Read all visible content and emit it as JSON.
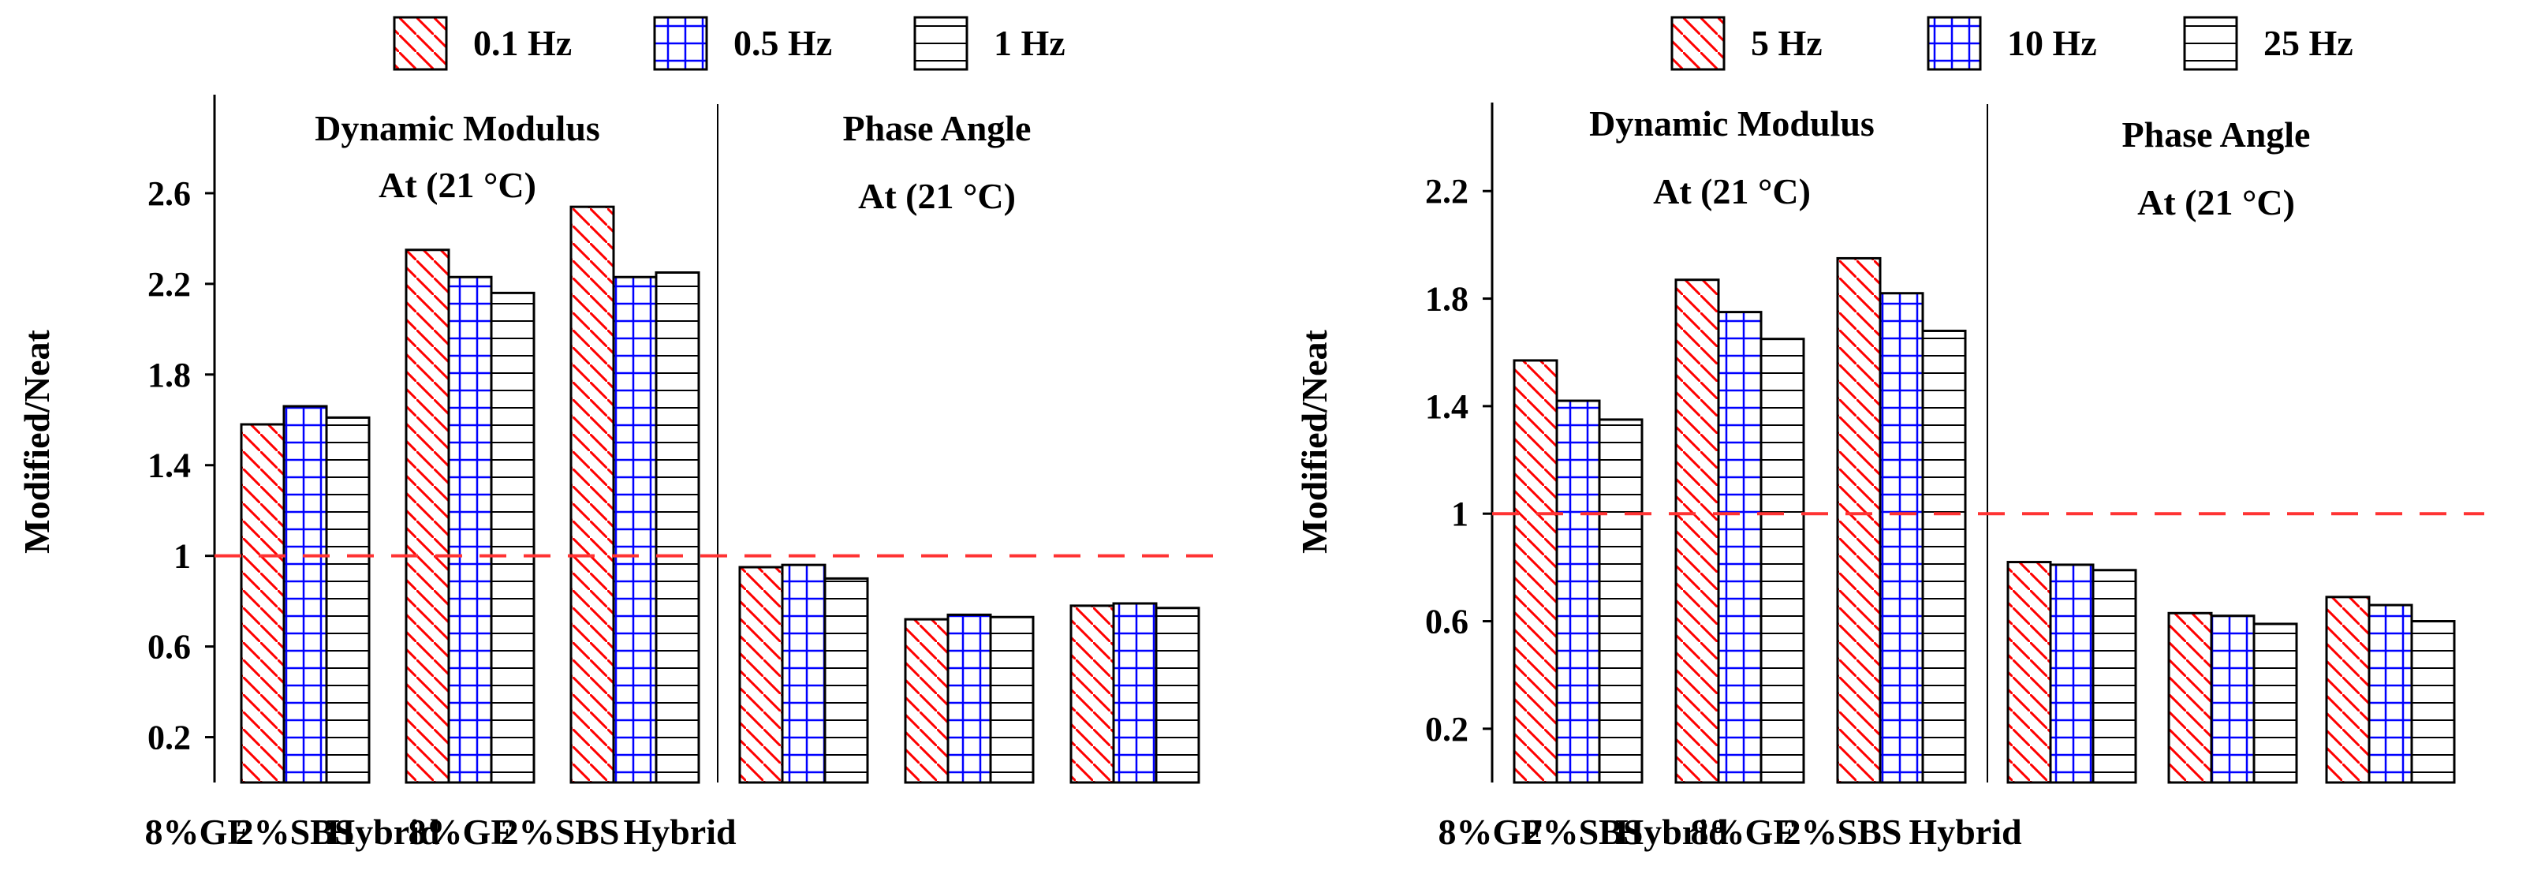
{
  "colors": {
    "hatch_red": "#ff0000",
    "hatch_blue": "#0000ff",
    "stroke": "#000000",
    "ref_line": "#ff3333"
  },
  "chart_data": [
    {
      "type": "bar",
      "ylabel": "Modified/Neat",
      "ylim": [
        0,
        3.0
      ],
      "yticks": [
        0.2,
        0.6,
        1,
        1.4,
        1.8,
        2.2,
        2.6
      ],
      "ytick_labels": [
        "0.2",
        "0.6",
        "1",
        "1.4",
        "1.8",
        "2.2",
        "2.6"
      ],
      "reference_line": 1,
      "section_titles": [
        {
          "line1": "Dynamic Modulus",
          "line2": "At (21 °C)"
        },
        {
          "line1": "Phase Angle",
          "line2": "At (21 °C)"
        }
      ],
      "categories": [
        "8%GF",
        "2%SBS",
        "Hybrid",
        "8%GF",
        "2%SBS",
        "Hybrid"
      ],
      "legend": {
        "placement": "top",
        "entries": [
          "0.1 Hz",
          "0.5 Hz",
          "1 Hz"
        ]
      },
      "series": [
        {
          "name": "0.1 Hz",
          "pattern": "diag-red",
          "values": [
            1.58,
            2.35,
            2.54,
            0.95,
            0.72,
            0.78
          ]
        },
        {
          "name": "0.5 Hz",
          "pattern": "grid-blue",
          "values": [
            1.66,
            2.23,
            2.23,
            0.96,
            0.74,
            0.79
          ]
        },
        {
          "name": "1 Hz",
          "pattern": "horiz-black",
          "values": [
            1.61,
            2.16,
            2.25,
            0.9,
            0.73,
            0.77
          ]
        }
      ]
    },
    {
      "type": "bar",
      "ylabel": "Modified/Neat",
      "ylim": [
        0,
        2.5
      ],
      "yticks": [
        0.2,
        0.6,
        1,
        1.4,
        1.8,
        2.2
      ],
      "ytick_labels": [
        "0.2",
        "0.6",
        "1",
        "1.4",
        "1.8",
        "2.2"
      ],
      "reference_line": 1,
      "section_titles": [
        {
          "line1": "Dynamic Modulus",
          "line2": "At (21 °C)"
        },
        {
          "line1": "Phase Angle",
          "line2": "At (21 °C)"
        }
      ],
      "categories": [
        "8%GF",
        "2%SBS",
        "Hybrid",
        "8%GF",
        "2%SBS",
        "Hybrid"
      ],
      "legend": {
        "placement": "top",
        "entries": [
          "5 Hz",
          "10 Hz",
          "25 Hz"
        ]
      },
      "series": [
        {
          "name": "5 Hz",
          "pattern": "diag-red",
          "values": [
            1.57,
            1.87,
            1.95,
            0.82,
            0.63,
            0.69
          ]
        },
        {
          "name": "10 Hz",
          "pattern": "grid-blue",
          "values": [
            1.42,
            1.75,
            1.82,
            0.81,
            0.62,
            0.66
          ]
        },
        {
          "name": "25 Hz",
          "pattern": "horiz-black",
          "values": [
            1.35,
            1.65,
            1.68,
            0.79,
            0.59,
            0.6
          ]
        }
      ]
    }
  ]
}
